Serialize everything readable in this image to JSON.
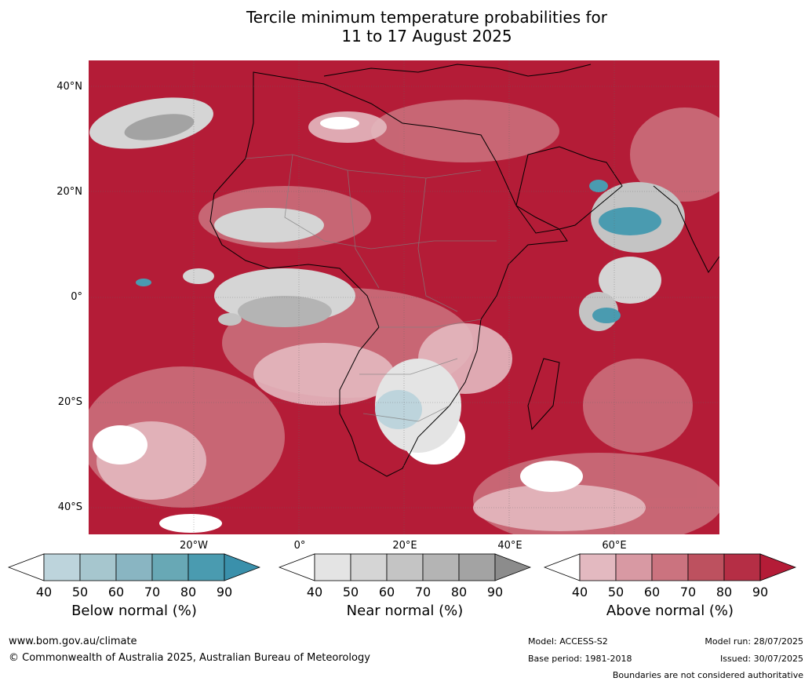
{
  "title_line1": "Tercile minimum temperature probabilities for",
  "title_line2": "11 to 17 August 2025",
  "lat_labels": [
    "40°N",
    "20°N",
    "0°",
    "20°S",
    "40°S"
  ],
  "lon_labels": [
    "20°W",
    "0°",
    "20°E",
    "40°E",
    "60°E"
  ],
  "colorbars": [
    {
      "label": "Below normal (%)",
      "ticks": [
        "40",
        "50",
        "60",
        "70",
        "80",
        "90"
      ],
      "colors": [
        "#ffffff",
        "#bdd4dc",
        "#a6c6ce",
        "#89b5c2",
        "#68a8b5",
        "#4a9bb0",
        "#3a90ab"
      ]
    },
    {
      "label": "Near normal (%)",
      "ticks": [
        "40",
        "50",
        "60",
        "70",
        "80",
        "90"
      ],
      "colors": [
        "#ffffff",
        "#e4e4e4",
        "#d5d5d5",
        "#c4c4c4",
        "#b4b4b4",
        "#a3a3a3",
        "#8c8c8c"
      ]
    },
    {
      "label": "Above normal (%)",
      "ticks": [
        "40",
        "50",
        "60",
        "70",
        "80",
        "90"
      ],
      "colors": [
        "#ffffff",
        "#e3b9c0",
        "#d899a3",
        "#cb737f",
        "#bd515f",
        "#b52e45",
        "#b41c37"
      ]
    }
  ],
  "footer": {
    "website": "www.bom.gov.au/climate",
    "copyright": "© Commonwealth of Australia 2025, Australian Bureau of Meteorology",
    "model": "Model: ACCESS-S2",
    "base_period": "Base period: 1981-2018",
    "model_run": "Model run: 28/07/2025",
    "issued": "Issued: 30/07/2025",
    "disclaimer": "Boundaries are not considered authoritative"
  }
}
